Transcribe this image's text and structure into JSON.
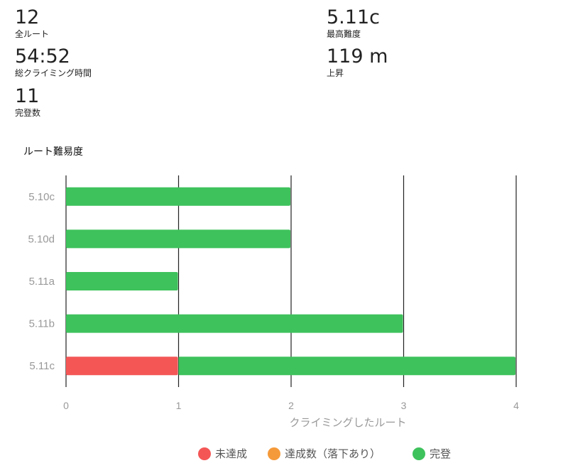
{
  "stats": {
    "total_routes": {
      "value": "12",
      "label": "全ルート"
    },
    "climb_time": {
      "value": "54:52",
      "label": "総クライミング時間"
    },
    "sends": {
      "value": "11",
      "label": "完登数"
    },
    "max_grade": {
      "value": "5.11c",
      "label": "最高難度"
    },
    "ascent": {
      "value": "119 m",
      "label": "上昇"
    }
  },
  "section_title": "ルート難易度",
  "colors": {
    "not_sent": "#f45656",
    "sent_with_falls": "#f59a3a",
    "sent": "#3ec25c",
    "grid": "#222222",
    "tick_text": "#999999"
  },
  "chart_data": {
    "type": "bar",
    "orientation": "horizontal",
    "stacked": true,
    "categories": [
      "5.10c",
      "5.10d",
      "5.11a",
      "5.11b",
      "5.11c"
    ],
    "series": [
      {
        "name": "未達成",
        "color_key": "not_sent",
        "values": [
          0,
          0,
          0,
          0,
          1
        ]
      },
      {
        "name": "達成数（落下あり）",
        "color_key": "sent_with_falls",
        "values": [
          0,
          0,
          0,
          0,
          0
        ]
      },
      {
        "name": "完登",
        "color_key": "sent",
        "values": [
          2,
          2,
          1,
          3,
          3
        ]
      }
    ],
    "xlim": [
      0,
      4
    ],
    "xticks": [
      "0",
      "1",
      "2",
      "3",
      "4"
    ],
    "xlabel": "クライミングしたルート",
    "ylabel": "",
    "grid": true,
    "legend_position": "bottom"
  }
}
